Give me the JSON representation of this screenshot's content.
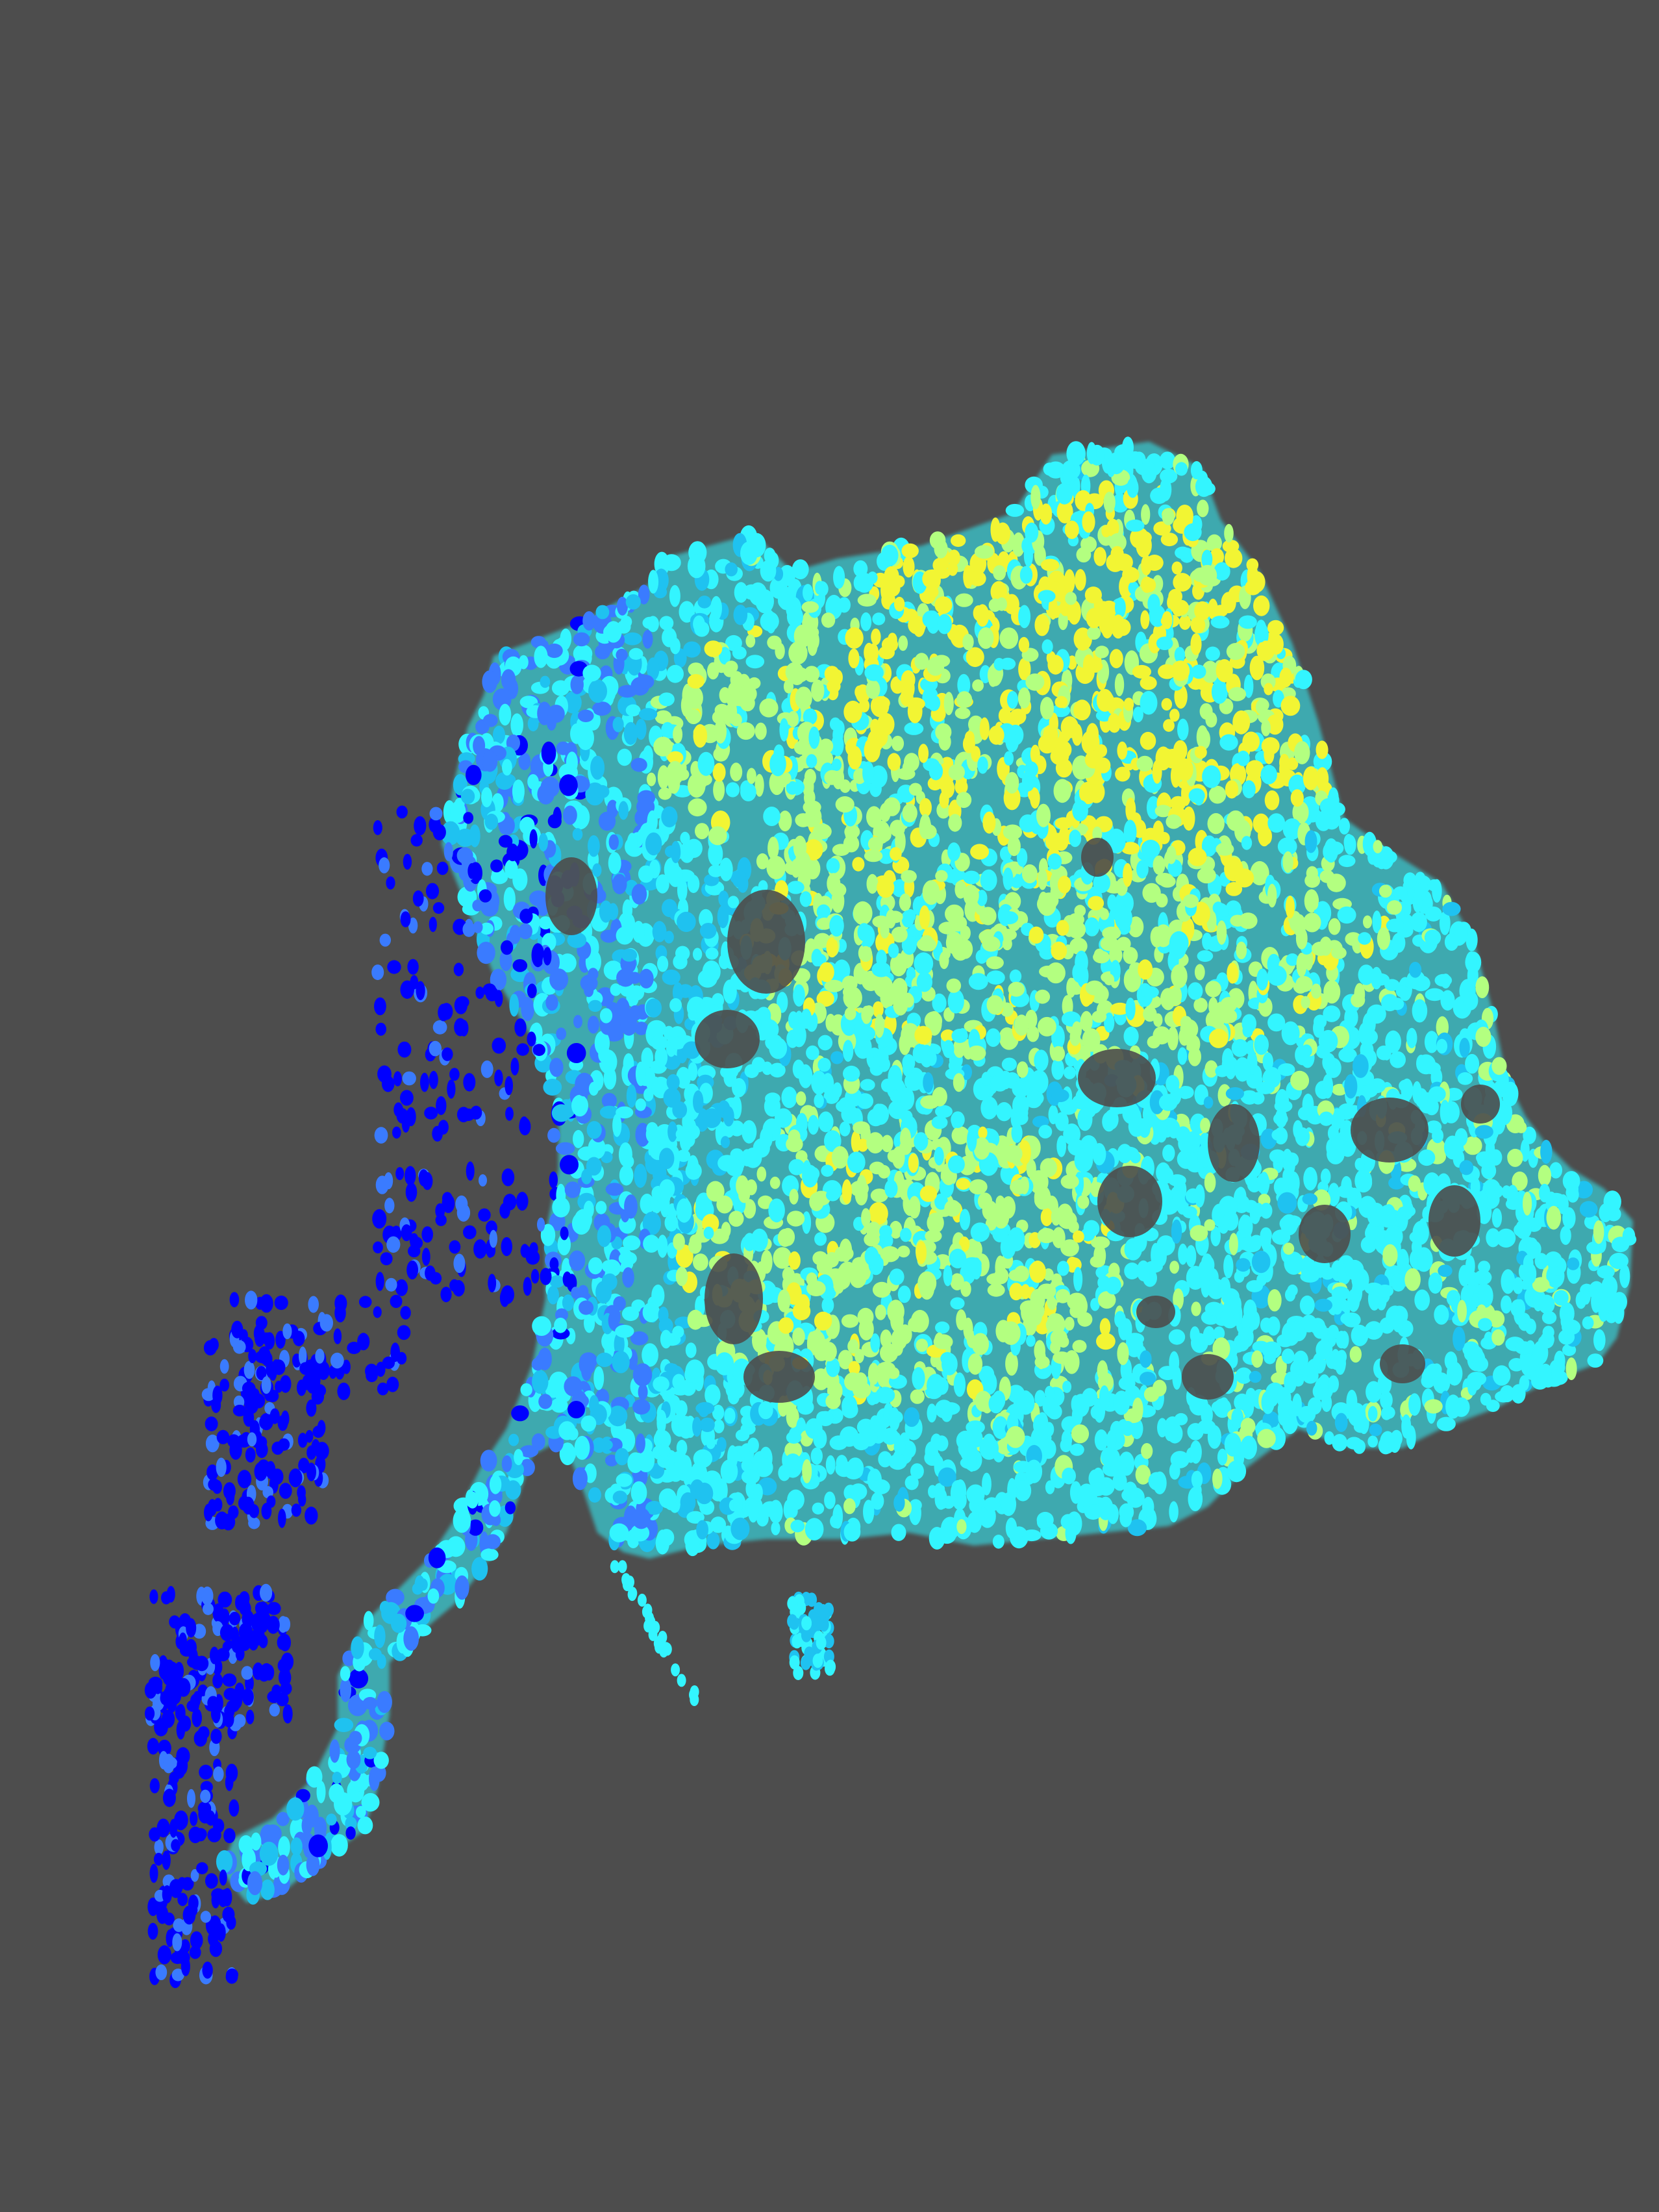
{
  "viewer": {
    "background_color": "#4d4d4d",
    "render_mode": "point-cloud",
    "color_map": {
      "name": "height-colormap",
      "stops": [
        "#0000ff",
        "#3a7bff",
        "#1fc2f0",
        "#33f5ff",
        "#b3ff80",
        "#f2f533"
      ]
    },
    "scene": "tree-canopy-point-cloud"
  }
}
